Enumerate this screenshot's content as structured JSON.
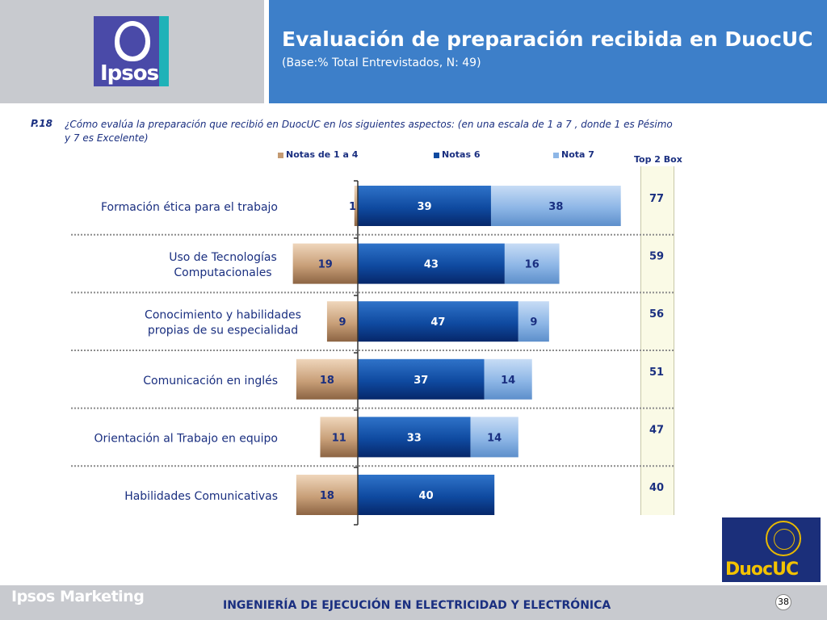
{
  "header": {
    "title": "Evaluación de preparación recibida en DuocUC",
    "subtitle": "(Base:% Total Entrevistados, N: 49)",
    "logo_text": "Ipsos"
  },
  "question": {
    "label": "P.18",
    "text": "¿Cómo evalúa la preparación que recibió en DuocUC en los siguientes aspectos: (en una escala de 1 a 7 , donde 1 es Pésimo y 7 es Excelente)"
  },
  "legend": [
    {
      "name": "Notas de 1 a 4",
      "color": "#c49a72"
    },
    {
      "name": "Notas 6",
      "color": "#0f4aa0"
    },
    {
      "name": "Nota 7",
      "color": "#8db6e6"
    }
  ],
  "top2_label": "Top 2 Box",
  "chart_data": {
    "type": "bar",
    "orientation": "horizontal",
    "stacked": true,
    "diverging": true,
    "categories": [
      "Formación ética para el trabajo",
      "Uso de Tecnologías Computacionales",
      "Conocimiento y habilidades propias de su especialidad",
      "Comunicación en inglés",
      "Orientación al Trabajo en equipo",
      "Habilidades Comunicativas"
    ],
    "category_lines": [
      [
        "Formación ética para el trabajo"
      ],
      [
        "Uso de Tecnologías",
        "Computacionales"
      ],
      [
        "Conocimiento y habilidades",
        "propias de su especialidad"
      ],
      [
        "Comunicación en inglés"
      ],
      [
        "Orientación al Trabajo en equipo"
      ],
      [
        "Habilidades Comunicativas"
      ]
    ],
    "series": [
      {
        "name": "Notas de 1 a 4",
        "values": [
          1,
          19,
          9,
          18,
          11,
          18
        ]
      },
      {
        "name": "Notas 6",
        "values": [
          39,
          43,
          47,
          37,
          33,
          40
        ]
      },
      {
        "name": "Nota 7",
        "values": [
          38,
          16,
          9,
          14,
          14,
          0
        ]
      }
    ],
    "top2_box": [
      77,
      59,
      56,
      51,
      47,
      40
    ],
    "legend_position": "top",
    "grid": false
  },
  "footer": {
    "brand": "Ipsos Marketing",
    "program": "INGENIERÍA DE EJECUCIÓN EN ELECTRICIDAD Y ELECTRÓNICA",
    "page": "38",
    "partner_logo_text": "DuocUC"
  }
}
